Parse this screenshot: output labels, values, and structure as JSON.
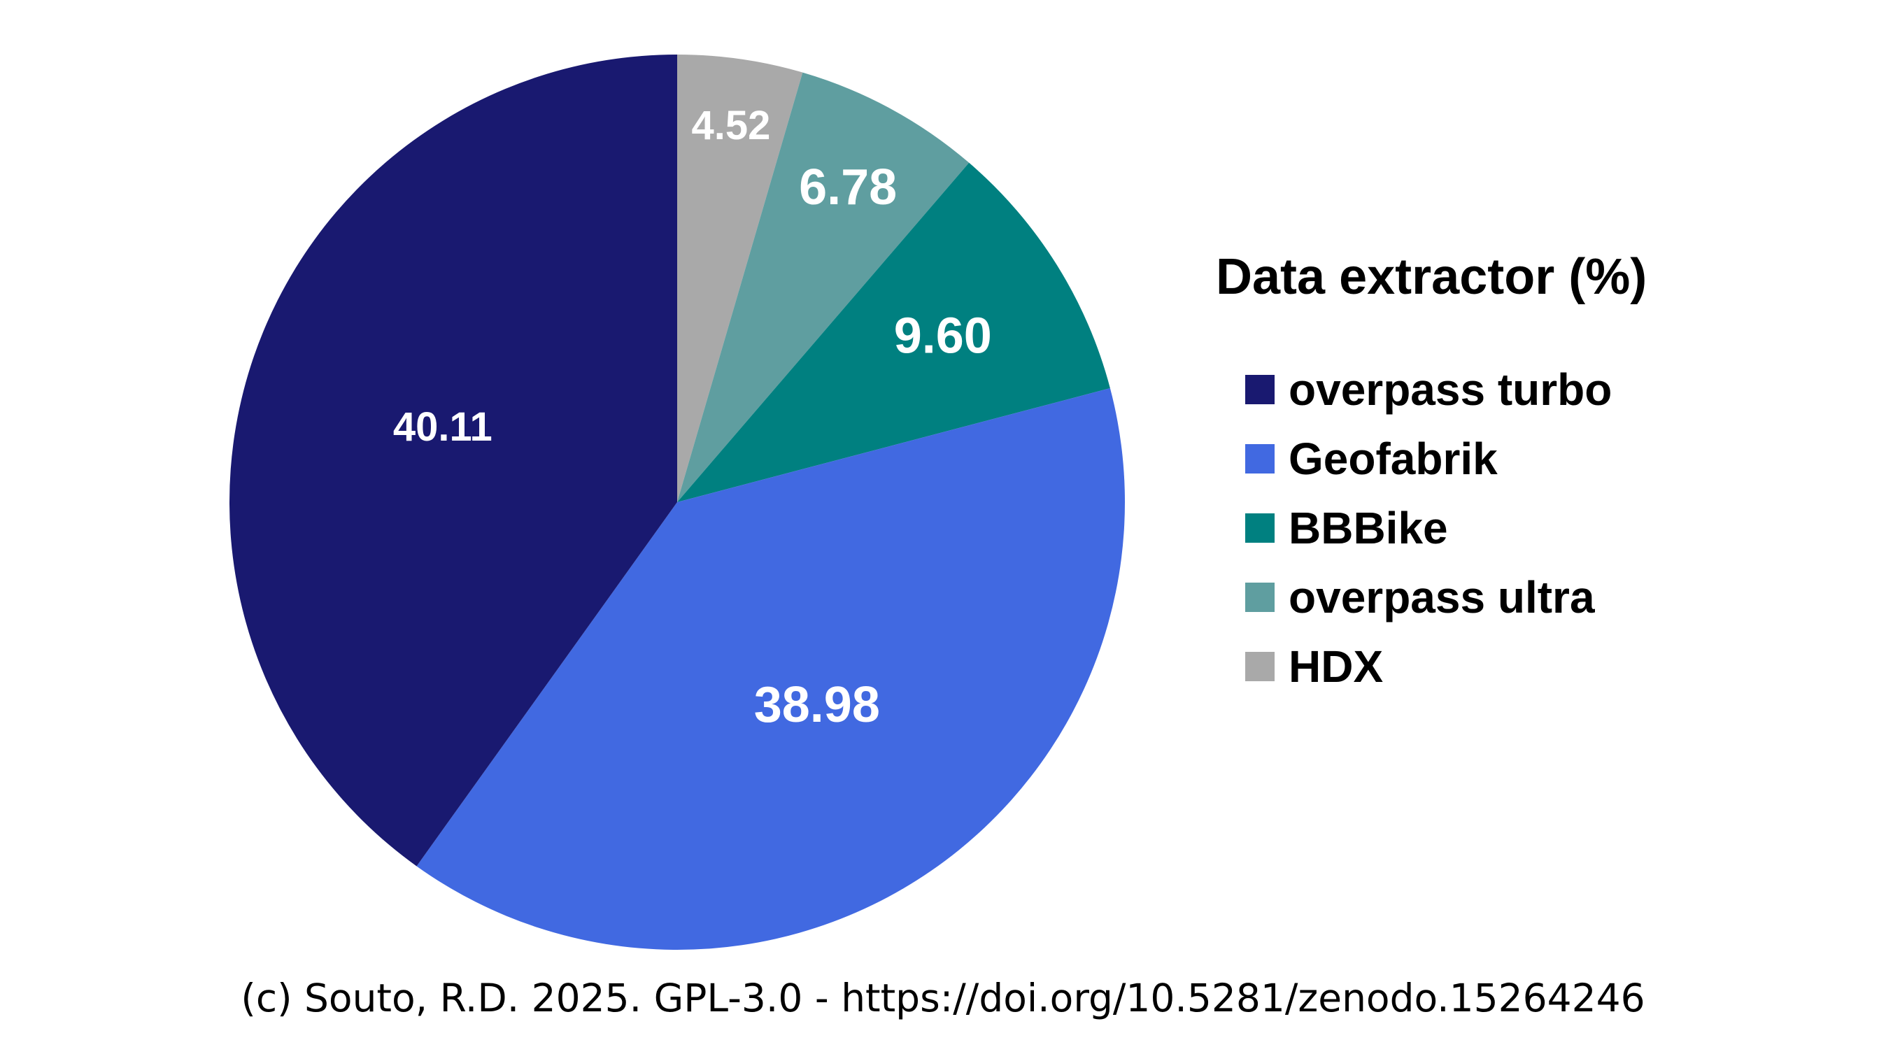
{
  "chart_data": {
    "type": "pie",
    "title": "",
    "legend_title": "Data extractor (%)",
    "legend_position": "right",
    "start": "top",
    "direction": "clockwise",
    "slices": [
      {
        "label": "HDX",
        "value": 4.52,
        "value_label": "4.52",
        "color": "#a9a9a9"
      },
      {
        "label": "overpass ultra",
        "value": 6.78,
        "value_label": "6.78",
        "color": "#5f9ea0"
      },
      {
        "label": "BBBike",
        "value": 9.6,
        "value_label": "9.60",
        "color": "#008080"
      },
      {
        "label": "Geofabrik",
        "value": 38.98,
        "value_label": "38.98",
        "color": "#4169e1"
      },
      {
        "label": "overpass turbo",
        "value": 40.11,
        "value_label": "40.11",
        "color": "#191970"
      }
    ],
    "legend_order": [
      "overpass turbo",
      "Geofabrik",
      "BBBike",
      "overpass ultra",
      "HDX"
    ]
  },
  "footer": {
    "credit": "(c) Souto, R.D. 2025. GPL-3.0 - https://doi.org/10.5281/zenodo.15264246"
  }
}
